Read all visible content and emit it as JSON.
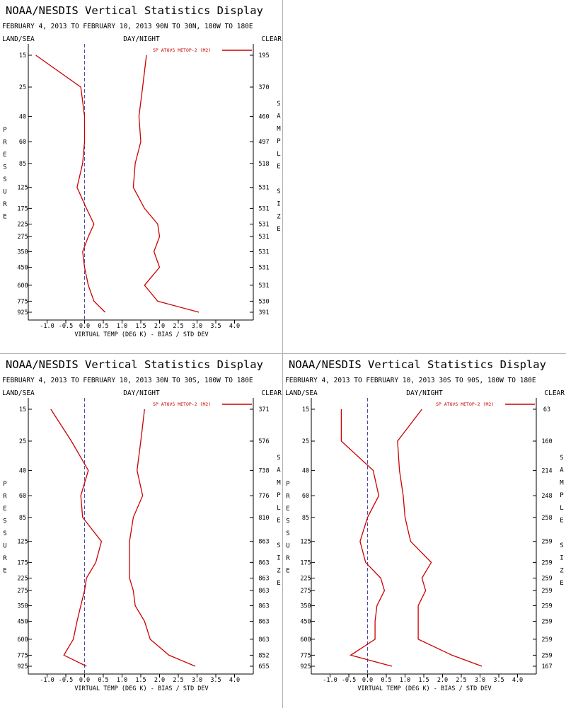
{
  "chart_data": [
    {
      "type": "line",
      "title": "NOAA/NESDIS Vertical Statistics Display",
      "subtitle": "FEBRUARY 4, 2013 TO FEBRUARY 10, 2013 90N TO 30N, 180W TO 180E",
      "left_label": "LAND/SEA",
      "center_label": "DAY/NIGHT",
      "right_label": "CLEAR",
      "xlabel": "VIRTUAL TEMP (DEG K) - BIAS / STD DEV",
      "ylabel": "PRESSURE",
      "right_axis_label": "SAMPLE SIZE",
      "legend": "SP ATOVS METOP-2 (M2)",
      "series_color": "#cc0000",
      "xlim": [
        -1.5,
        4.5
      ],
      "x_ticks": [
        "-1.0",
        "-0.5",
        "0.0",
        "0.5",
        "1.0",
        "1.5",
        "2.0",
        "2.5",
        "3.0",
        "3.5",
        "4.0"
      ],
      "pressure_levels": [
        "15",
        "25",
        "40",
        "60",
        "85",
        "125",
        "175",
        "225",
        "275",
        "350",
        "450",
        "600",
        "775",
        "925"
      ],
      "sample_size": [
        "195",
        "370",
        "460",
        "497",
        "518",
        "531",
        "531",
        "531",
        "531",
        "531",
        "531",
        "531",
        "530",
        "391"
      ],
      "bias": [
        -1.3,
        -0.1,
        0.0,
        0.0,
        -0.05,
        -0.2,
        0.05,
        0.25,
        0.1,
        -0.05,
        0.0,
        0.1,
        0.25,
        0.55
      ],
      "std_dev": [
        1.65,
        1.55,
        1.45,
        1.5,
        1.35,
        1.3,
        1.6,
        1.95,
        2.0,
        1.85,
        2.0,
        1.6,
        1.95,
        3.05
      ]
    },
    {
      "type": "line",
      "title": "NOAA/NESDIS Vertical Statistics Display",
      "subtitle": "FEBRUARY 4, 2013 TO FEBRUARY 10, 2013 30N TO 30S, 180W TO 180E",
      "left_label": "LAND/SEA",
      "center_label": "DAY/NIGHT",
      "right_label": "CLEAR",
      "xlabel": "VIRTUAL TEMP (DEG K) - BIAS / STD DEV",
      "ylabel": "PRESSURE",
      "right_axis_label": "SAMPLE SIZE",
      "legend": "SP ATOVS METOP-2 (M2)",
      "series_color": "#cc0000",
      "xlim": [
        -1.5,
        4.5
      ],
      "x_ticks": [
        "-1.0",
        "-0.5",
        "0.0",
        "0.5",
        "1.0",
        "1.5",
        "2.0",
        "2.5",
        "3.0",
        "3.5",
        "4.0"
      ],
      "pressure_levels": [
        "15",
        "25",
        "40",
        "60",
        "85",
        "125",
        "175",
        "225",
        "275",
        "350",
        "450",
        "600",
        "775",
        "925"
      ],
      "sample_size": [
        "371",
        "576",
        "738",
        "776",
        "810",
        "863",
        "863",
        "863",
        "863",
        "863",
        "863",
        "863",
        "852",
        "655"
      ],
      "bias": [
        -0.9,
        -0.35,
        0.1,
        -0.1,
        -0.05,
        0.45,
        0.3,
        0.05,
        0.0,
        -0.1,
        -0.2,
        -0.3,
        -0.55,
        0.05
      ],
      "std_dev": [
        1.6,
        1.5,
        1.4,
        1.55,
        1.3,
        1.2,
        1.2,
        1.2,
        1.3,
        1.35,
        1.6,
        1.75,
        2.25,
        2.95
      ]
    },
    {
      "type": "line",
      "title": "NOAA/NESDIS Vertical Statistics Display",
      "subtitle": "FEBRUARY 4, 2013 TO FEBRUARY 10, 2013 30S TO 90S, 180W TO 180E",
      "left_label": "LAND/SEA",
      "center_label": "DAY/NIGHT",
      "right_label": "CLEAR",
      "xlabel": "VIRTUAL TEMP (DEG K) - BIAS / STD DEV",
      "ylabel": "PRESSURE",
      "right_axis_label": "SAMPLE SIZE",
      "legend": "SP ATOVS METOP-2 (M2)",
      "series_color": "#cc0000",
      "xlim": [
        -1.5,
        4.5
      ],
      "x_ticks": [
        "-1.0",
        "-0.5",
        "0.0",
        "0.5",
        "1.0",
        "1.5",
        "2.0",
        "2.5",
        "3.0",
        "3.5",
        "4.0"
      ],
      "pressure_levels": [
        "15",
        "25",
        "40",
        "60",
        "85",
        "125",
        "175",
        "225",
        "275",
        "350",
        "450",
        "600",
        "775",
        "925"
      ],
      "sample_size": [
        "63",
        "160",
        "214",
        "248",
        "258",
        "259",
        "259",
        "259",
        "259",
        "259",
        "259",
        "259",
        "259",
        "167"
      ],
      "bias": [
        -0.7,
        -0.7,
        0.15,
        0.3,
        0.0,
        -0.2,
        -0.05,
        0.35,
        0.45,
        0.25,
        0.2,
        0.2,
        -0.45,
        0.65
      ],
      "std_dev": [
        1.45,
        0.8,
        0.85,
        0.95,
        1.0,
        1.15,
        1.7,
        1.45,
        1.55,
        1.35,
        1.35,
        1.35,
        2.25,
        3.05
      ]
    }
  ]
}
